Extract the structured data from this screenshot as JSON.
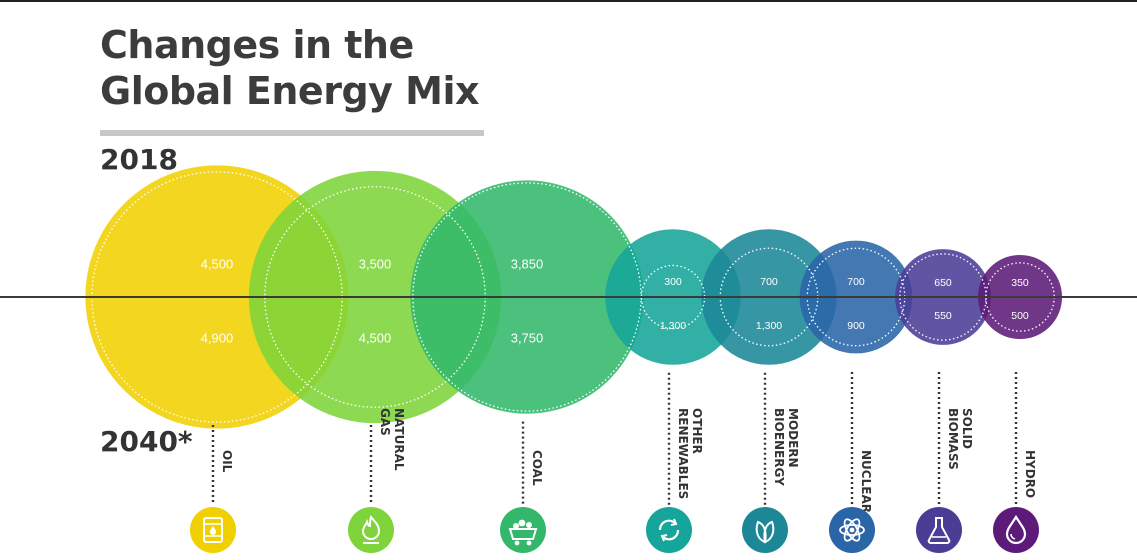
{
  "title_line1": "Changes in the",
  "title_line2": "Global Energy Mix",
  "year_top": "2018",
  "year_bottom": "2040*",
  "colors": {
    "oil": "#f0d000",
    "natural_gas": "#7ed43a",
    "coal": "#33b86b",
    "other_renewables": "#16a59a",
    "modern_bioenergy": "#1b8797",
    "nuclear": "#2a65a8",
    "solid_biomass": "#4b3d96",
    "hydro": "#5c1b78"
  },
  "chart_data": {
    "type": "bubble",
    "title": "Changes in the Global Energy Mix",
    "categories": [
      "OIL",
      "NATURAL GAS",
      "COAL",
      "OTHER RENEWABLES",
      "MODERN BIOENERGY",
      "NUCLEAR",
      "SOLID BIOMASS",
      "HYDRO"
    ],
    "series": [
      {
        "name": "2018",
        "values": [
          4500,
          3500,
          3850,
          300,
          700,
          700,
          650,
          350
        ]
      },
      {
        "name": "2040*",
        "values": [
          4900,
          4500,
          3750,
          1300,
          1300,
          900,
          550,
          500
        ]
      }
    ],
    "labels_2018": [
      "4,500",
      "3,500",
      "3,850",
      "300",
      "700",
      "700",
      "650",
      "350"
    ],
    "labels_2040": [
      "4,900",
      "4,500",
      "3,750",
      "1,300",
      "1,300",
      "900",
      "550",
      "500"
    ],
    "icons": [
      "oil-barrel-icon",
      "flame-icon",
      "coal-cart-icon",
      "recycle-icon",
      "leaf-icon",
      "atom-icon",
      "flask-icon",
      "water-drop-icon"
    ]
  }
}
